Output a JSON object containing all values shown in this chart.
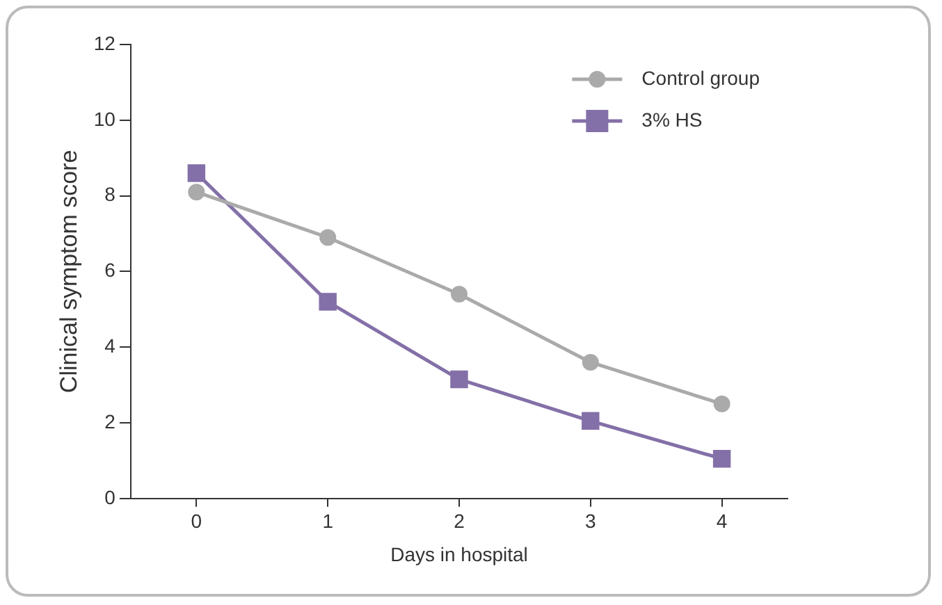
{
  "chart_data": {
    "type": "line",
    "xlabel": "Days in hospital",
    "ylabel": "Clinical symptom score",
    "categories": [
      "0",
      "1",
      "2",
      "3",
      "4"
    ],
    "series": [
      {
        "name": "Control group",
        "color": "#aaaaaa",
        "marker": "circle",
        "values": [
          8.1,
          6.9,
          5.4,
          3.6,
          2.5
        ]
      },
      {
        "name": "3% HS",
        "color": "#8470a8",
        "marker": "square",
        "values": [
          8.6,
          5.2,
          3.15,
          2.05,
          1.05
        ]
      }
    ],
    "ylim": [
      0,
      12
    ],
    "yticks": [
      0,
      2,
      4,
      6,
      8,
      10,
      12
    ],
    "grid": false,
    "legend": "top right",
    "line_style": "solid"
  }
}
